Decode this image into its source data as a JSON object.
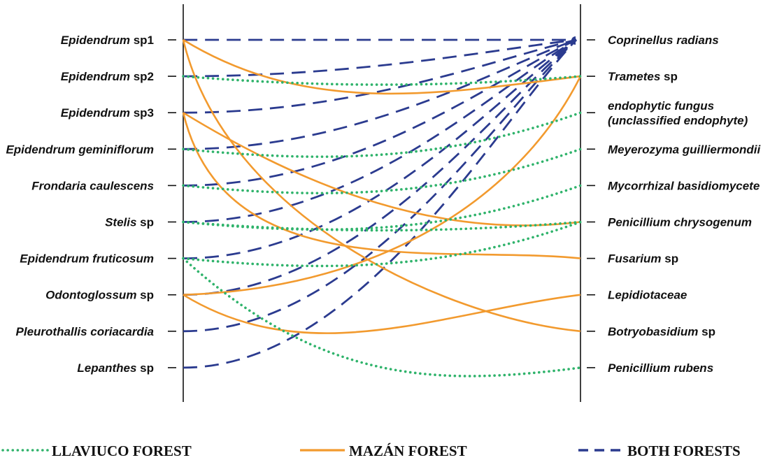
{
  "orchids": [
    {
      "name": "Epidendrum",
      "suffix": " sp1"
    },
    {
      "name": "Epidendrum",
      "suffix": " sp2"
    },
    {
      "name": "Epidendrum",
      "suffix": " sp3"
    },
    {
      "name": "Epidendrum geminiflorum",
      "suffix": ""
    },
    {
      "name": "Frondaria caulescens",
      "suffix": ""
    },
    {
      "name": "Stelis",
      "suffix": " sp"
    },
    {
      "name": "Epidendrum fruticosum",
      "suffix": ""
    },
    {
      "name": "Odontoglossum",
      "suffix": " sp"
    },
    {
      "name": "Pleurothallis coriacardia",
      "suffix": ""
    },
    {
      "name": "Lepanthes",
      "suffix": " sp"
    }
  ],
  "fungi": [
    {
      "name": "Coprinellus radians",
      "suffix": ""
    },
    {
      "name": "Trametes",
      "suffix": " sp"
    },
    {
      "name": "endophytic fungus",
      "suffix": "",
      "line2": "(unclassified endophyte)"
    },
    {
      "name": "Meyerozyma guilliermondii",
      "suffix": ""
    },
    {
      "name": "Mycorrhizal basidiomycete",
      "suffix": ""
    },
    {
      "name": "Penicillium chrysogenum",
      "suffix": ""
    },
    {
      "name": "Fusarium",
      "suffix": " sp"
    },
    {
      "name": "Lepidiotaceae",
      "suffix": ""
    },
    {
      "name": "Botryobasidium",
      "suffix": " sp"
    },
    {
      "name": "Penicillium rubens",
      "suffix": ""
    }
  ],
  "legend": [
    {
      "key": "llaviuco",
      "label": "LLAVIUCO FOREST"
    },
    {
      "key": "mazan",
      "label": "MAZÁN FOREST"
    },
    {
      "key": "both",
      "label": "BOTH FORESTS"
    }
  ],
  "colors": {
    "llaviuco": "#2fb36b",
    "mazan": "#f29a2e",
    "both": "#2b3b8f",
    "axis": "#111111"
  },
  "links": [
    {
      "orchid": 0,
      "fungus": 0,
      "forest": "both"
    },
    {
      "orchid": 1,
      "fungus": 0,
      "forest": "both"
    },
    {
      "orchid": 2,
      "fungus": 0,
      "forest": "both"
    },
    {
      "orchid": 3,
      "fungus": 0,
      "forest": "both"
    },
    {
      "orchid": 4,
      "fungus": 0,
      "forest": "both"
    },
    {
      "orchid": 5,
      "fungus": 0,
      "forest": "both"
    },
    {
      "orchid": 6,
      "fungus": 0,
      "forest": "both"
    },
    {
      "orchid": 7,
      "fungus": 0,
      "forest": "both"
    },
    {
      "orchid": 8,
      "fungus": 0,
      "forest": "both"
    },
    {
      "orchid": 9,
      "fungus": 0,
      "forest": "both"
    },
    {
      "orchid": 0,
      "fungus": 1,
      "forest": "mazan"
    },
    {
      "orchid": 0,
      "fungus": 8,
      "forest": "mazan"
    },
    {
      "orchid": 2,
      "fungus": 5,
      "forest": "mazan"
    },
    {
      "orchid": 2,
      "fungus": 6,
      "forest": "mazan"
    },
    {
      "orchid": 7,
      "fungus": 1,
      "forest": "mazan"
    },
    {
      "orchid": 7,
      "fungus": 7,
      "forest": "mazan"
    },
    {
      "orchid": 1,
      "fungus": 1,
      "forest": "llaviuco"
    },
    {
      "orchid": 3,
      "fungus": 2,
      "forest": "llaviuco"
    },
    {
      "orchid": 4,
      "fungus": 3,
      "forest": "llaviuco"
    },
    {
      "orchid": 5,
      "fungus": 4,
      "forest": "llaviuco"
    },
    {
      "orchid": 5,
      "fungus": 5,
      "forest": "llaviuco"
    },
    {
      "orchid": 6,
      "fungus": 5,
      "forest": "llaviuco"
    },
    {
      "orchid": 6,
      "fungus": 9,
      "forest": "llaviuco"
    }
  ]
}
